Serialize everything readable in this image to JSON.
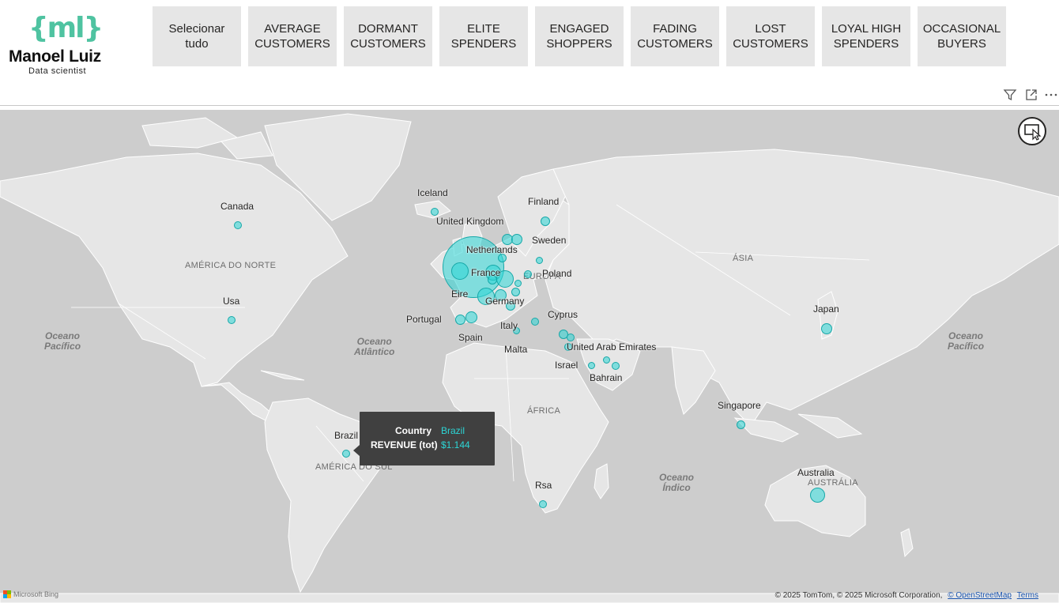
{
  "logo": {
    "mark": "{ml}",
    "name": "Manoel Luiz",
    "subtitle": "Data scientist"
  },
  "slicer": {
    "items": [
      "Selecionar tudo",
      "AVERAGE CUSTOMERS",
      "DORMANT CUSTOMERS",
      "ELITE SPENDERS",
      "ENGAGED SHOPPERS",
      "FADING CUSTOMERS",
      "LOST CUSTOMERS",
      "LOYAL HIGH SPENDERS",
      "OCCASIONAL BUYERS"
    ]
  },
  "visual_header_icons": [
    "filter-icon",
    "focus-mode-icon",
    "more-options-icon"
  ],
  "map": {
    "colors": {
      "bubble_fill": "#2cd6d6",
      "bubble_stroke": "#17a8a8",
      "ocean": "#cdcdcd",
      "land": "#e6e6e6"
    },
    "regions": [
      "AMÉRICA DO NORTE",
      "AMÉRICA DO SUL",
      "EUROPA",
      "ÁSIA",
      "ÁFRICA",
      "AUSTRÁLIA"
    ],
    "oceans": [
      "Oceano\nPacífico",
      "Oceano\nAtlântico",
      "Oceano\nÍndico",
      "Oceano\nPacífico"
    ],
    "countries": [
      "Canada",
      "Usa",
      "Iceland",
      "United Kingdom",
      "Finland",
      "Sweden",
      "Netherlands",
      "Poland",
      "France",
      "Eire",
      "Germany",
      "Portugal",
      "Spain",
      "Italy",
      "Malta",
      "Cyprus",
      "United Arab Emirates",
      "Israel",
      "Bahrain",
      "Japan",
      "Singapore",
      "Brazil",
      "Rsa",
      "Australia"
    ],
    "tooltip": {
      "rows": [
        {
          "key": "Country",
          "value": "Brazil"
        },
        {
          "key": "REVENUE (tot)",
          "value": "$1.144"
        }
      ]
    },
    "bing_label": "Microsoft Bing",
    "attribution": {
      "text": "© 2025 TomTom, © 2025 Microsoft Corporation,",
      "osm_link": "© OpenStreetMap",
      "terms_link": "Terms"
    }
  }
}
